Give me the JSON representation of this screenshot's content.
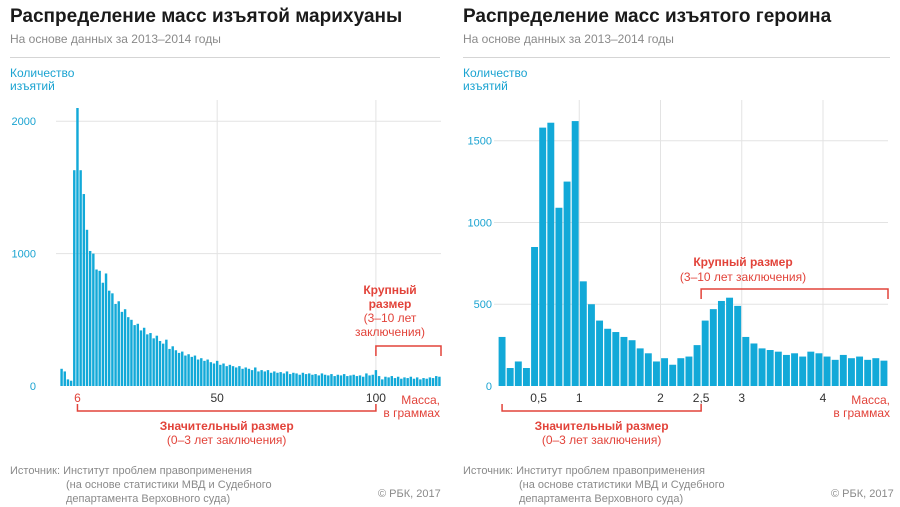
{
  "colors": {
    "bar": "#12a9d8",
    "accent": "#e2433a",
    "axis_text": "#1aa3d1",
    "grid": "#e3e3e3",
    "tick": "#333333"
  },
  "chart_data": [
    {
      "type": "bar",
      "title": "Распределение масс изъятой марихуаны",
      "subtitle": "На основе данных за 2013–2014 годы",
      "ylabel": [
        "Количество",
        "изъятий"
      ],
      "xlabel": [
        "Масса,",
        "в граммах"
      ],
      "ylim": [
        0,
        2100
      ],
      "yticks": [
        0,
        1000,
        2000
      ],
      "x_start": 0,
      "x_end": 120,
      "xticks": [
        {
          "value": 6,
          "label": "6",
          "color": "accent"
        },
        {
          "value": 50,
          "label": "50",
          "color": "tick"
        },
        {
          "value": 100,
          "label": "100",
          "color": "tick"
        }
      ],
      "grid_x": [
        50,
        100
      ],
      "bars": [
        {
          "x": 1,
          "y": 130
        },
        {
          "x": 2,
          "y": 110
        },
        {
          "x": 3,
          "y": 50
        },
        {
          "x": 4,
          "y": 40
        },
        {
          "x": 5,
          "y": 1630
        },
        {
          "x": 6,
          "y": 2100
        },
        {
          "x": 7,
          "y": 1630
        },
        {
          "x": 8,
          "y": 1450
        },
        {
          "x": 9,
          "y": 1180
        },
        {
          "x": 10,
          "y": 1020
        },
        {
          "x": 11,
          "y": 1000
        },
        {
          "x": 12,
          "y": 880
        },
        {
          "x": 13,
          "y": 870
        },
        {
          "x": 14,
          "y": 780
        },
        {
          "x": 15,
          "y": 850
        },
        {
          "x": 16,
          "y": 720
        },
        {
          "x": 17,
          "y": 700
        },
        {
          "x": 18,
          "y": 620
        },
        {
          "x": 19,
          "y": 640
        },
        {
          "x": 20,
          "y": 560
        },
        {
          "x": 21,
          "y": 580
        },
        {
          "x": 22,
          "y": 520
        },
        {
          "x": 23,
          "y": 500
        },
        {
          "x": 24,
          "y": 460
        },
        {
          "x": 25,
          "y": 470
        },
        {
          "x": 26,
          "y": 420
        },
        {
          "x": 27,
          "y": 440
        },
        {
          "x": 28,
          "y": 390
        },
        {
          "x": 29,
          "y": 400
        },
        {
          "x": 30,
          "y": 360
        },
        {
          "x": 31,
          "y": 380
        },
        {
          "x": 32,
          "y": 340
        },
        {
          "x": 33,
          "y": 320
        },
        {
          "x": 34,
          "y": 350
        },
        {
          "x": 35,
          "y": 280
        },
        {
          "x": 36,
          "y": 300
        },
        {
          "x": 37,
          "y": 270
        },
        {
          "x": 38,
          "y": 250
        },
        {
          "x": 39,
          "y": 260
        },
        {
          "x": 40,
          "y": 230
        },
        {
          "x": 41,
          "y": 240
        },
        {
          "x": 42,
          "y": 220
        },
        {
          "x": 43,
          "y": 230
        },
        {
          "x": 44,
          "y": 200
        },
        {
          "x": 45,
          "y": 210
        },
        {
          "x": 46,
          "y": 190
        },
        {
          "x": 47,
          "y": 200
        },
        {
          "x": 48,
          "y": 180
        },
        {
          "x": 49,
          "y": 170
        },
        {
          "x": 50,
          "y": 190
        },
        {
          "x": 51,
          "y": 160
        },
        {
          "x": 52,
          "y": 170
        },
        {
          "x": 53,
          "y": 150
        },
        {
          "x": 54,
          "y": 160
        },
        {
          "x": 55,
          "y": 150
        },
        {
          "x": 56,
          "y": 140
        },
        {
          "x": 57,
          "y": 150
        },
        {
          "x": 58,
          "y": 130
        },
        {
          "x": 59,
          "y": 140
        },
        {
          "x": 60,
          "y": 130
        },
        {
          "x": 61,
          "y": 120
        },
        {
          "x": 62,
          "y": 140
        },
        {
          "x": 63,
          "y": 110
        },
        {
          "x": 64,
          "y": 120
        },
        {
          "x": 65,
          "y": 110
        },
        {
          "x": 66,
          "y": 120
        },
        {
          "x": 67,
          "y": 100
        },
        {
          "x": 68,
          "y": 110
        },
        {
          "x": 69,
          "y": 100
        },
        {
          "x": 70,
          "y": 105
        },
        {
          "x": 71,
          "y": 95
        },
        {
          "x": 72,
          "y": 110
        },
        {
          "x": 73,
          "y": 90
        },
        {
          "x": 74,
          "y": 100
        },
        {
          "x": 75,
          "y": 95
        },
        {
          "x": 76,
          "y": 85
        },
        {
          "x": 77,
          "y": 100
        },
        {
          "x": 78,
          "y": 90
        },
        {
          "x": 79,
          "y": 95
        },
        {
          "x": 80,
          "y": 85
        },
        {
          "x": 81,
          "y": 90
        },
        {
          "x": 82,
          "y": 80
        },
        {
          "x": 83,
          "y": 95
        },
        {
          "x": 84,
          "y": 85
        },
        {
          "x": 85,
          "y": 80
        },
        {
          "x": 86,
          "y": 90
        },
        {
          "x": 87,
          "y": 75
        },
        {
          "x": 88,
          "y": 85
        },
        {
          "x": 89,
          "y": 80
        },
        {
          "x": 90,
          "y": 90
        },
        {
          "x": 91,
          "y": 75
        },
        {
          "x": 92,
          "y": 80
        },
        {
          "x": 93,
          "y": 85
        },
        {
          "x": 94,
          "y": 75
        },
        {
          "x": 95,
          "y": 80
        },
        {
          "x": 96,
          "y": 70
        },
        {
          "x": 97,
          "y": 95
        },
        {
          "x": 98,
          "y": 80
        },
        {
          "x": 99,
          "y": 85
        },
        {
          "x": 100,
          "y": 120
        },
        {
          "x": 101,
          "y": 75
        },
        {
          "x": 102,
          "y": 50
        },
        {
          "x": 103,
          "y": 70
        },
        {
          "x": 104,
          "y": 65
        },
        {
          "x": 105,
          "y": 75
        },
        {
          "x": 106,
          "y": 60
        },
        {
          "x": 107,
          "y": 70
        },
        {
          "x": 108,
          "y": 55
        },
        {
          "x": 109,
          "y": 65
        },
        {
          "x": 110,
          "y": 60
        },
        {
          "x": 111,
          "y": 70
        },
        {
          "x": 112,
          "y": 55
        },
        {
          "x": 113,
          "y": 65
        },
        {
          "x": 114,
          "y": 50
        },
        {
          "x": 115,
          "y": 60
        },
        {
          "x": 116,
          "y": 55
        },
        {
          "x": 117,
          "y": 65
        },
        {
          "x": 118,
          "y": 60
        },
        {
          "x": 119,
          "y": 75
        },
        {
          "x": 120,
          "y": 70
        }
      ],
      "brackets": [
        {
          "position": "below",
          "from": 6,
          "to": 100,
          "label": [
            "Значительный размер",
            "(0–3 лет заключения)"
          ]
        },
        {
          "position": "above",
          "from": 100,
          "to": 120,
          "label": [
            "Крупный",
            "размер",
            "(3–10 лет",
            "заключения)"
          ]
        }
      ]
    },
    {
      "type": "bar",
      "title": "Распределение масс изъятого героина",
      "subtitle": "На основе данных за 2013–2014 годы",
      "ylabel": [
        "Количество",
        "изъятий"
      ],
      "xlabel": [
        "Масса,",
        "в граммах"
      ],
      "ylim": [
        0,
        1700
      ],
      "yticks": [
        0,
        500,
        1000,
        1500
      ],
      "x_start": 0,
      "x_end": 4.75,
      "xticks": [
        {
          "value": 0.5,
          "label": "0,5",
          "color": "tick"
        },
        {
          "value": 1,
          "label": "1",
          "color": "tick"
        },
        {
          "value": 2,
          "label": "2",
          "color": "tick"
        },
        {
          "value": 2.5,
          "label": "2,5",
          "color": "tick"
        },
        {
          "value": 3,
          "label": "3",
          "color": "tick"
        },
        {
          "value": 4,
          "label": "4",
          "color": "tick"
        }
      ],
      "grid_x": [
        1,
        2,
        3,
        4
      ],
      "bars": [
        {
          "x": 0.05,
          "y": 300
        },
        {
          "x": 0.15,
          "y": 110
        },
        {
          "x": 0.25,
          "y": 150
        },
        {
          "x": 0.35,
          "y": 110
        },
        {
          "x": 0.45,
          "y": 850
        },
        {
          "x": 0.55,
          "y": 1580
        },
        {
          "x": 0.65,
          "y": 1610
        },
        {
          "x": 0.75,
          "y": 1090
        },
        {
          "x": 0.85,
          "y": 1250
        },
        {
          "x": 0.95,
          "y": 1620
        },
        {
          "x": 1.05,
          "y": 640
        },
        {
          "x": 1.15,
          "y": 500
        },
        {
          "x": 1.25,
          "y": 400
        },
        {
          "x": 1.35,
          "y": 350
        },
        {
          "x": 1.45,
          "y": 330
        },
        {
          "x": 1.55,
          "y": 300
        },
        {
          "x": 1.65,
          "y": 280
        },
        {
          "x": 1.75,
          "y": 230
        },
        {
          "x": 1.85,
          "y": 200
        },
        {
          "x": 1.95,
          "y": 150
        },
        {
          "x": 2.05,
          "y": 170
        },
        {
          "x": 2.15,
          "y": 130
        },
        {
          "x": 2.25,
          "y": 170
        },
        {
          "x": 2.35,
          "y": 180
        },
        {
          "x": 2.45,
          "y": 250
        },
        {
          "x": 2.55,
          "y": 400
        },
        {
          "x": 2.65,
          "y": 470
        },
        {
          "x": 2.75,
          "y": 520
        },
        {
          "x": 2.85,
          "y": 540
        },
        {
          "x": 2.95,
          "y": 490
        },
        {
          "x": 3.05,
          "y": 300
        },
        {
          "x": 3.15,
          "y": 260
        },
        {
          "x": 3.25,
          "y": 230
        },
        {
          "x": 3.35,
          "y": 220
        },
        {
          "x": 3.45,
          "y": 210
        },
        {
          "x": 3.55,
          "y": 190
        },
        {
          "x": 3.65,
          "y": 200
        },
        {
          "x": 3.75,
          "y": 180
        },
        {
          "x": 3.85,
          "y": 210
        },
        {
          "x": 3.95,
          "y": 200
        },
        {
          "x": 4.05,
          "y": 180
        },
        {
          "x": 4.15,
          "y": 160
        },
        {
          "x": 4.25,
          "y": 190
        },
        {
          "x": 4.35,
          "y": 170
        },
        {
          "x": 4.45,
          "y": 180
        },
        {
          "x": 4.55,
          "y": 160
        },
        {
          "x": 4.65,
          "y": 170
        },
        {
          "x": 4.75,
          "y": 155
        }
      ],
      "brackets": [
        {
          "position": "below",
          "from": 0.05,
          "to": 2.5,
          "label": [
            "Значительный размер",
            "(0–3 лет заключения)"
          ]
        },
        {
          "position": "above",
          "from": 2.5,
          "to": 4.75,
          "label": [
            "Крупный размер",
            "(3–10 лет заключения)"
          ]
        }
      ]
    }
  ],
  "footer": [
    {
      "source": [
        "Источник: Институт проблем правоприменения",
        "(на основе статистики МВД и Судебного",
        "департамента Верховного суда)"
      ],
      "copyright": "© РБК, 2017"
    },
    {
      "source": [
        "Источник: Институт проблем правоприменения",
        "(на основе статистики МВД и Судебного",
        "департамента Верховного суда)"
      ],
      "copyright": "© РБК, 2017"
    }
  ]
}
